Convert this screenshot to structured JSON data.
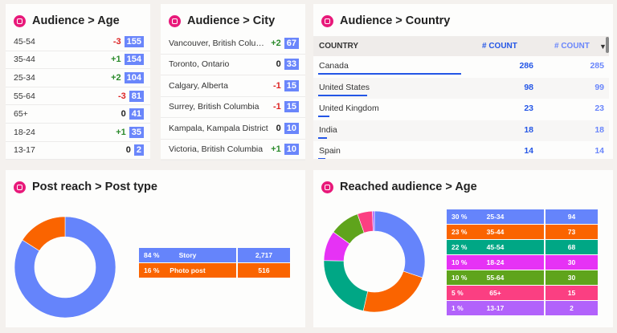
{
  "age_card": {
    "title": "Audience > Age",
    "rows": [
      {
        "label": "45-54",
        "delta": "-3",
        "value": "155"
      },
      {
        "label": "35-44",
        "delta": "+1",
        "value": "154"
      },
      {
        "label": "25-34",
        "delta": "+2",
        "value": "104"
      },
      {
        "label": "55-64",
        "delta": "-3",
        "value": "81"
      },
      {
        "label": "65+",
        "delta": "0",
        "value": "41"
      },
      {
        "label": "18-24",
        "delta": "+1",
        "value": "35"
      },
      {
        "label": "13-17",
        "delta": "0",
        "value": "2"
      }
    ]
  },
  "city_card": {
    "title": "Audience > City",
    "rows": [
      {
        "label": "Vancouver, British Columbia",
        "delta": "+2",
        "value": "67"
      },
      {
        "label": "Toronto, Ontario",
        "delta": "0",
        "value": "33"
      },
      {
        "label": "Calgary, Alberta",
        "delta": "-1",
        "value": "15"
      },
      {
        "label": "Surrey, British Columbia",
        "delta": "-1",
        "value": "15"
      },
      {
        "label": "Kampala, Kampala District",
        "delta": "0",
        "value": "10"
      },
      {
        "label": "Victoria, British Columbia",
        "delta": "+1",
        "value": "10"
      }
    ]
  },
  "country_card": {
    "title": "Audience > Country",
    "headers": {
      "country": "COUNTRY",
      "count1": "# COUNT",
      "count2": "# COUNT"
    },
    "rows": [
      {
        "country": "Canada",
        "count1": "286",
        "count2": "285"
      },
      {
        "country": "United States",
        "count1": "98",
        "count2": "99"
      },
      {
        "country": "United Kingdom",
        "count1": "23",
        "count2": "23"
      },
      {
        "country": "India",
        "count1": "18",
        "count2": "18"
      },
      {
        "country": "Spain",
        "count1": "14",
        "count2": "14"
      }
    ]
  },
  "post_card": {
    "title": "Post reach > Post type"
  },
  "reach_card": {
    "title": "Reached audience > Age"
  },
  "chart_data": [
    {
      "type": "pie",
      "donut": true,
      "categories": [
        "Story",
        "Photo post"
      ],
      "percent_labels": [
        "84 %",
        "16 %"
      ],
      "values": [
        2717,
        516
      ],
      "value_labels": [
        "2,717",
        "516"
      ],
      "colors": [
        "#6584fb",
        "#fa6400"
      ]
    },
    {
      "type": "pie",
      "donut": true,
      "categories": [
        "25-34",
        "35-44",
        "45-54",
        "18-24",
        "55-64",
        "65+",
        "13-17"
      ],
      "percent_labels": [
        "30 %",
        "23 %",
        "22 %",
        "10 %",
        "10 %",
        "5 %",
        "1 %"
      ],
      "values": [
        94,
        73,
        68,
        30,
        30,
        15,
        2
      ],
      "value_labels": [
        "94",
        "73",
        "68",
        "30",
        "30",
        "15",
        "2"
      ],
      "colors": [
        "#6584fb",
        "#fa6400",
        "#00a785",
        "#e632f5",
        "#5fa41c",
        "#fb3f82",
        "#b262fb"
      ]
    }
  ]
}
